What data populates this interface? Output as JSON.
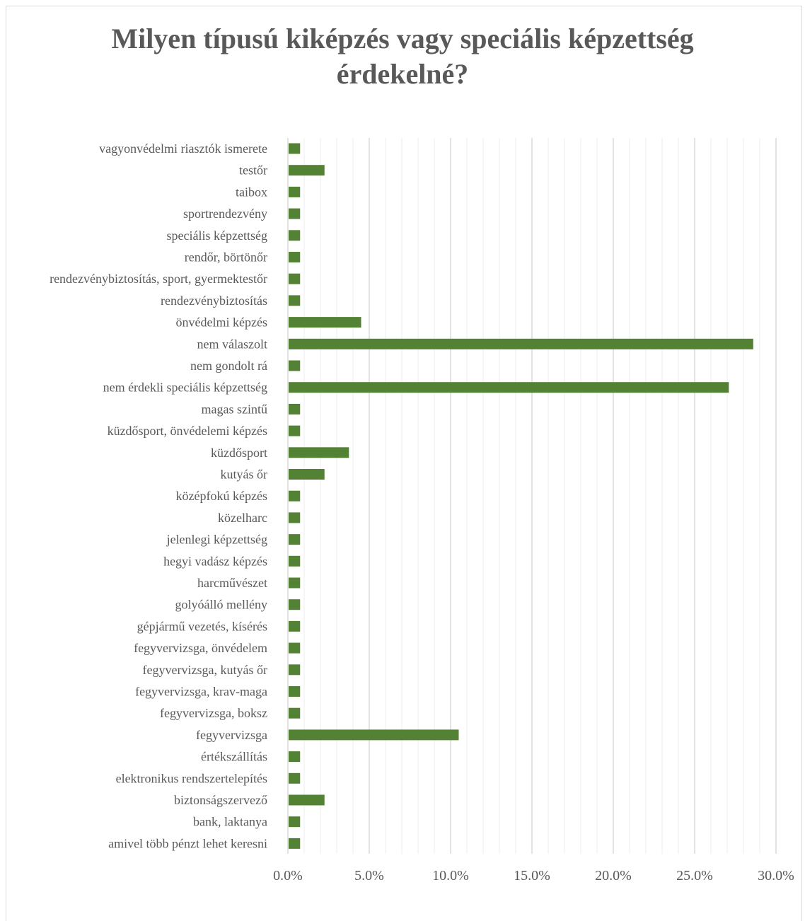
{
  "chart_data": {
    "type": "bar",
    "orientation": "horizontal",
    "title": "Milyen típusú kiképzés vagy speciális képzettség érdekelné?",
    "title_lines": [
      "Milyen típusú kiképzés vagy speciális képzettség",
      "érdekelné?"
    ],
    "xlabel": "",
    "ylabel": "",
    "xlim": [
      0,
      30
    ],
    "x_ticks": [
      "0.0%",
      "5.0%",
      "10.0%",
      "15.0%",
      "20.0%",
      "25.0%",
      "30.0%"
    ],
    "x_tick_values": [
      0,
      5,
      10,
      15,
      20,
      25,
      30
    ],
    "grid": true,
    "legend": "none",
    "bar_color": "#548235",
    "categories": [
      "vagyonvédelmi riasztók ismerete",
      "testőr",
      "taibox",
      "sportrendezvény",
      "speciális képzettség",
      "rendőr, börtönőr",
      "rendezvénybiztosítás, sport, gyermektestőr",
      "rendezvénybiztosítás",
      "önvédelmi képzés",
      "nem válaszolt",
      "nem gondolt rá",
      "nem érdekli speciális képzettség",
      "magas szintű",
      "küzdősport, önvédelemi képzés",
      "küzdősport",
      "kutyás őr",
      "középfokú képzés",
      "közelharc",
      "jelenlegi képzettség",
      "hegyi vadász képzés",
      "harcművészet",
      "golyóálló mellény",
      "gépjármű vezetés, kísérés",
      "fegyvervizsga, önvédelem",
      "fegyvervizsga, kutyás őr",
      "fegyvervizsga, krav-maga",
      "fegyvervizsga, boksz",
      "fegyvervizsga",
      "értékszállítás",
      "elektronikus rendszertelepítés",
      "biztonságszervező",
      "bank, laktanya",
      "amivel több pénzt lehet keresni"
    ],
    "values": [
      0.75,
      2.25,
      0.75,
      0.75,
      0.75,
      0.75,
      0.75,
      0.75,
      4.5,
      28.6,
      0.75,
      27.1,
      0.75,
      0.75,
      3.75,
      2.25,
      0.75,
      0.75,
      0.75,
      0.75,
      0.75,
      0.75,
      0.75,
      0.75,
      0.75,
      0.75,
      0.75,
      10.5,
      0.75,
      0.75,
      2.25,
      0.75,
      0.75
    ]
  }
}
